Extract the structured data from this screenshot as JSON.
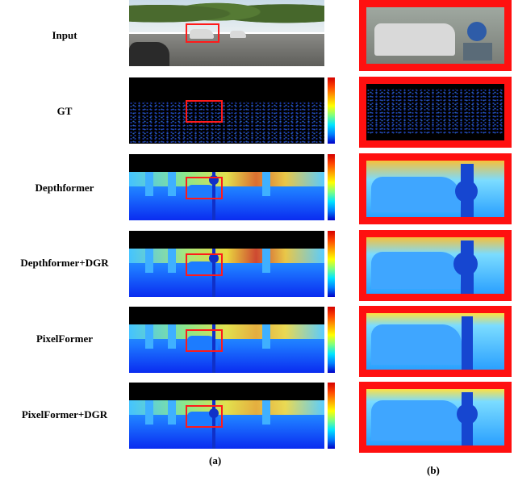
{
  "rows": [
    {
      "label": "Input"
    },
    {
      "label": "GT"
    },
    {
      "label": "Depthformer"
    },
    {
      "label": "Depthformer+DGR"
    },
    {
      "label": "PixelFormer"
    },
    {
      "label": "PixelFormer+DGR"
    }
  ],
  "captions": {
    "left": "(a)",
    "right": "(b)"
  },
  "colors": {
    "highlight": "#ff1a1a",
    "depth_near": "#0000c8",
    "depth_far": "#d40000"
  }
}
